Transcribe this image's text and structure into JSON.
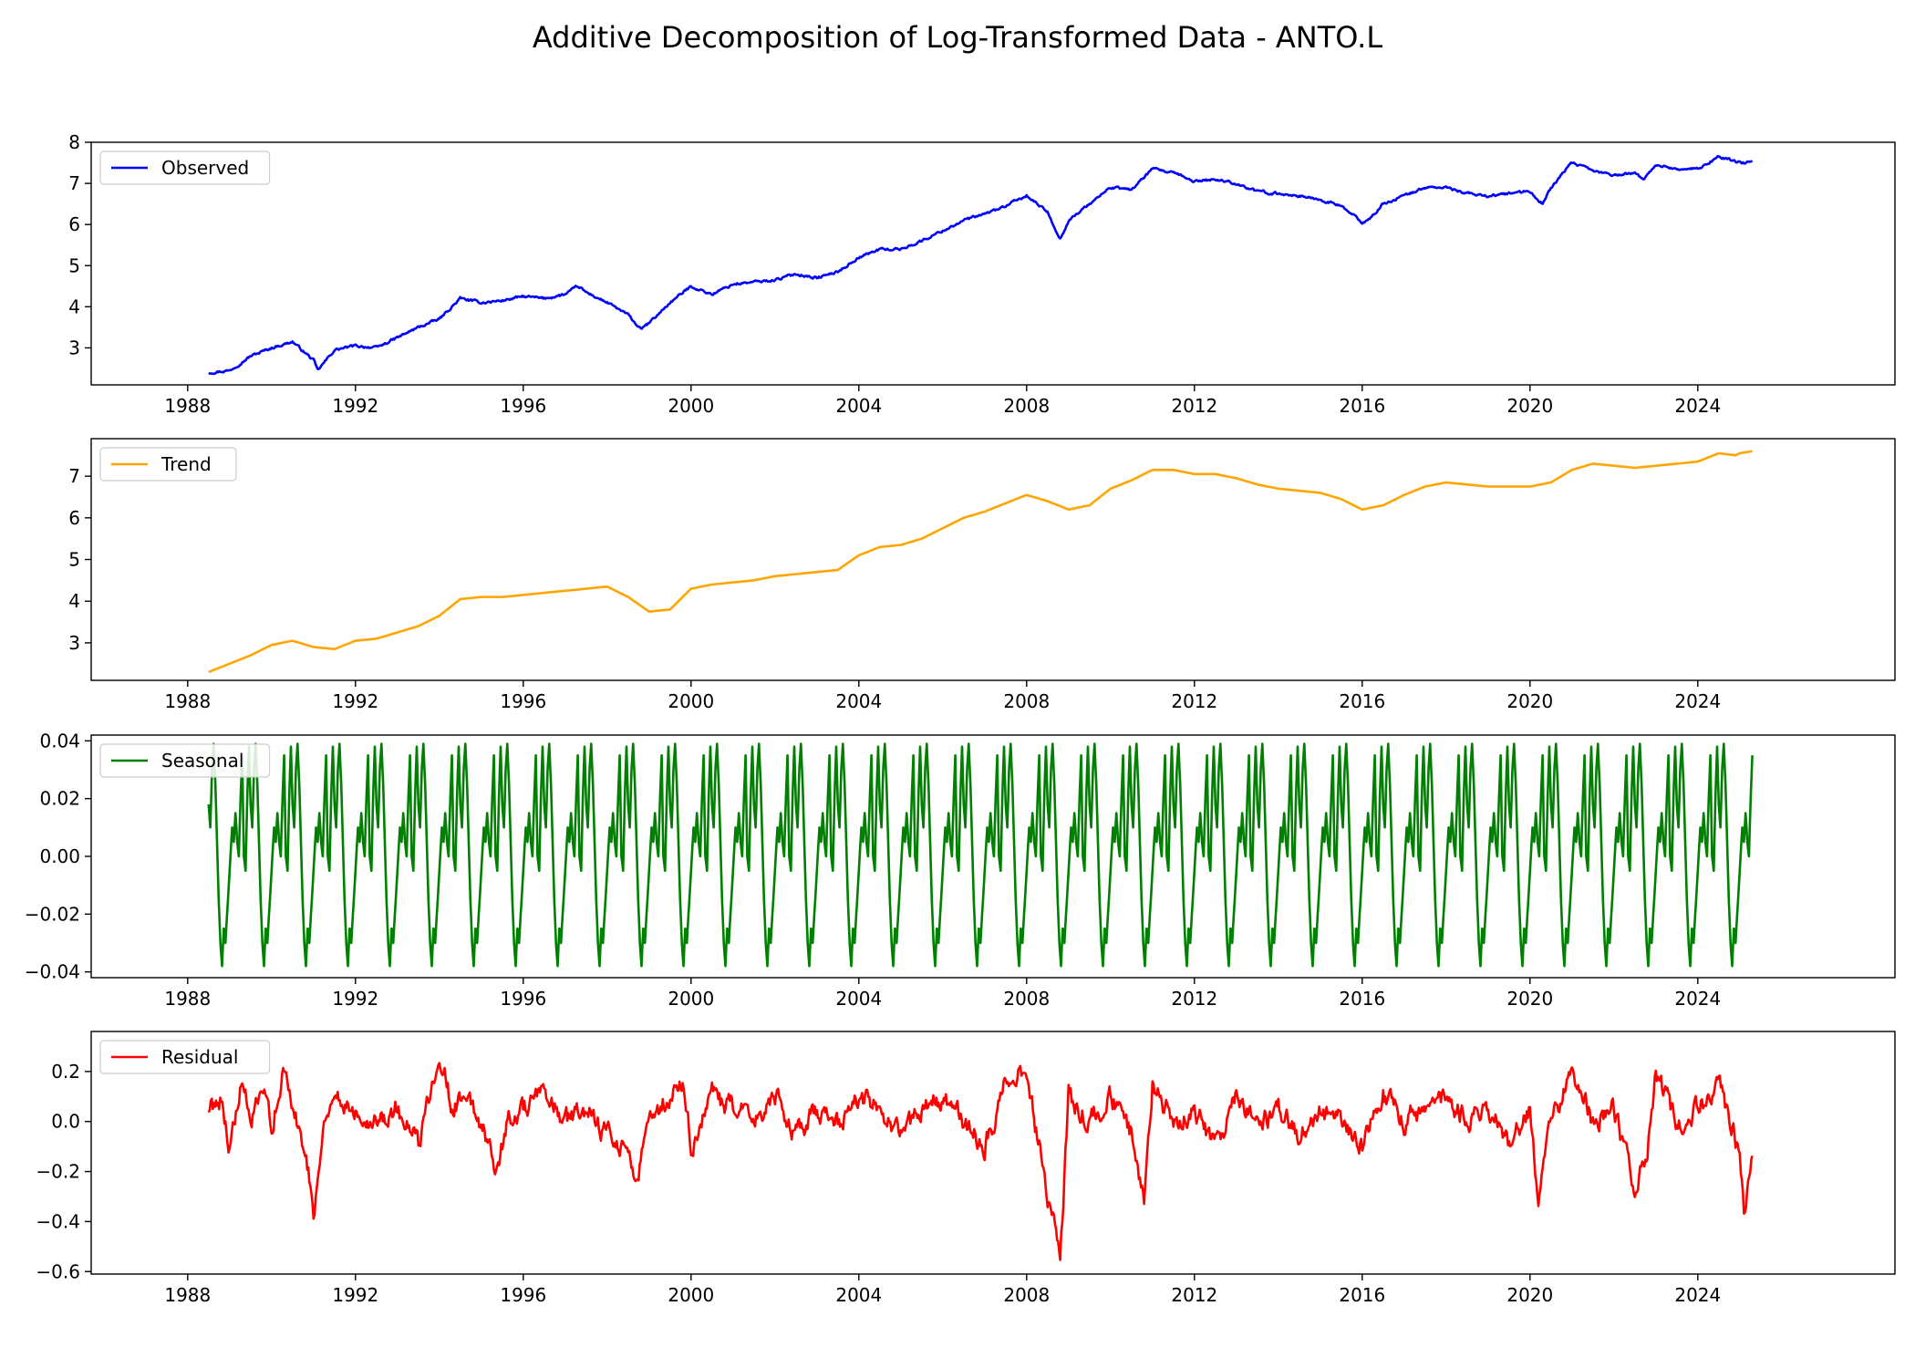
{
  "title": "Additive Decomposition of Log-Transformed Data - ANTO.L",
  "chart_data": [
    {
      "type": "line",
      "legend": "Observed",
      "legend_position": "upper-left",
      "color": "#0000ff",
      "x_range": [
        1985.7,
        2028.7
      ],
      "x_ticks": [
        1988,
        1992,
        1996,
        2000,
        2004,
        2008,
        2012,
        2016,
        2020,
        2024
      ],
      "ylim": [
        2.1,
        8.0
      ],
      "y_ticks": [
        3,
        4,
        5,
        6,
        7,
        8
      ],
      "y_tick_labels": [
        "3",
        "4",
        "5",
        "6",
        "7",
        "8"
      ],
      "noise": 0.05,
      "series": [
        {
          "name": "Observed",
          "x": [
            1988.5,
            1989.0,
            1989.5,
            1990.0,
            1990.5,
            1991.0,
            1991.1,
            1991.5,
            1992.0,
            1992.5,
            1993.0,
            1993.5,
            1994.0,
            1994.5,
            1995.0,
            1995.5,
            1996.0,
            1996.5,
            1997.0,
            1997.3,
            1997.5,
            1998.0,
            1998.5,
            1998.8,
            1999.0,
            1999.5,
            2000.0,
            2000.5,
            2001.0,
            2001.5,
            2002.0,
            2002.5,
            2003.0,
            2003.5,
            2004.0,
            2004.5,
            2005.0,
            2005.5,
            2006.0,
            2006.5,
            2007.0,
            2007.5,
            2008.0,
            2008.5,
            2008.8,
            2009.0,
            2009.5,
            2010.0,
            2010.5,
            2011.0,
            2011.5,
            2012.0,
            2012.5,
            2013.0,
            2013.5,
            2014.0,
            2014.5,
            2015.0,
            2015.5,
            2016.0,
            2016.2,
            2016.5,
            2017.0,
            2017.5,
            2018.0,
            2018.5,
            2019.0,
            2019.5,
            2020.0,
            2020.3,
            2020.5,
            2021.0,
            2021.5,
            2022.0,
            2022.5,
            2022.7,
            2023.0,
            2023.5,
            2024.0,
            2024.5,
            2025.0,
            2025.3
          ],
          "values": [
            2.4,
            2.45,
            2.8,
            3.0,
            3.15,
            2.7,
            2.45,
            2.95,
            3.05,
            3.0,
            3.25,
            3.5,
            3.7,
            4.2,
            4.1,
            4.15,
            4.25,
            4.2,
            4.3,
            4.5,
            4.35,
            4.1,
            3.8,
            3.45,
            3.6,
            4.1,
            4.5,
            4.3,
            4.55,
            4.6,
            4.65,
            4.8,
            4.7,
            4.85,
            5.2,
            5.4,
            5.4,
            5.6,
            5.85,
            6.1,
            6.25,
            6.45,
            6.7,
            6.3,
            5.65,
            6.1,
            6.5,
            6.9,
            6.85,
            7.35,
            7.25,
            7.05,
            7.1,
            7.0,
            6.8,
            6.75,
            6.7,
            6.6,
            6.45,
            6.05,
            6.15,
            6.5,
            6.7,
            6.9,
            6.9,
            6.75,
            6.7,
            6.75,
            6.8,
            6.5,
            6.9,
            7.5,
            7.3,
            7.2,
            7.25,
            7.1,
            7.45,
            7.35,
            7.35,
            7.65,
            7.5,
            7.5
          ]
        }
      ]
    },
    {
      "type": "line",
      "legend": "Trend",
      "legend_position": "upper-left",
      "color": "#ffa500",
      "x_range": [
        1985.7,
        2028.7
      ],
      "x_ticks": [
        1988,
        1992,
        1996,
        2000,
        2004,
        2008,
        2012,
        2016,
        2020,
        2024
      ],
      "ylim": [
        2.1,
        7.9
      ],
      "y_ticks": [
        3,
        4,
        5,
        6,
        7
      ],
      "y_tick_labels": [
        "3",
        "4",
        "5",
        "6",
        "7"
      ],
      "noise": 0.0,
      "series": [
        {
          "name": "Trend",
          "x": [
            1988.5,
            1989.0,
            1989.5,
            1990.0,
            1990.5,
            1991.0,
            1991.5,
            1992.0,
            1992.5,
            1993.0,
            1993.5,
            1994.0,
            1994.5,
            1995.0,
            1995.5,
            1996.0,
            1996.5,
            1997.0,
            1997.5,
            1998.0,
            1998.5,
            1999.0,
            1999.5,
            2000.0,
            2000.5,
            2001.0,
            2001.5,
            2002.0,
            2002.5,
            2003.0,
            2003.5,
            2004.0,
            2004.5,
            2005.0,
            2005.5,
            2006.0,
            2006.5,
            2007.0,
            2007.5,
            2008.0,
            2008.5,
            2009.0,
            2009.5,
            2010.0,
            2010.5,
            2011.0,
            2011.5,
            2012.0,
            2012.5,
            2013.0,
            2013.5,
            2014.0,
            2014.5,
            2015.0,
            2015.5,
            2016.0,
            2016.5,
            2017.0,
            2017.5,
            2018.0,
            2018.5,
            2019.0,
            2019.5,
            2020.0,
            2020.5,
            2021.0,
            2021.5,
            2022.0,
            2022.5,
            2023.0,
            2023.5,
            2024.0,
            2024.5,
            2024.9,
            2025.0,
            2025.3
          ],
          "values": [
            2.3,
            2.5,
            2.7,
            2.95,
            3.05,
            2.9,
            2.85,
            3.05,
            3.1,
            3.25,
            3.4,
            3.65,
            4.05,
            4.1,
            4.1,
            4.15,
            4.2,
            4.25,
            4.3,
            4.35,
            4.1,
            3.75,
            3.8,
            4.3,
            4.4,
            4.45,
            4.5,
            4.6,
            4.65,
            4.7,
            4.75,
            5.1,
            5.3,
            5.35,
            5.5,
            5.75,
            6.0,
            6.15,
            6.35,
            6.55,
            6.4,
            6.2,
            6.3,
            6.7,
            6.9,
            7.15,
            7.15,
            7.05,
            7.05,
            6.95,
            6.8,
            6.7,
            6.65,
            6.6,
            6.45,
            6.2,
            6.3,
            6.55,
            6.75,
            6.85,
            6.8,
            6.75,
            6.75,
            6.75,
            6.85,
            7.15,
            7.3,
            7.25,
            7.2,
            7.25,
            7.3,
            7.35,
            7.55,
            7.5,
            7.55,
            7.6
          ]
        }
      ]
    },
    {
      "type": "line",
      "legend": "Seasonal",
      "legend_position": "upper-left",
      "color": "#008000",
      "x_range": [
        1985.7,
        2028.7
      ],
      "x_ticks": [
        1988,
        1992,
        1996,
        2000,
        2004,
        2008,
        2012,
        2016,
        2020,
        2024
      ],
      "ylim": [
        -0.042,
        0.042
      ],
      "y_ticks": [
        -0.04,
        -0.02,
        0.0,
        0.02,
        0.04
      ],
      "y_tick_labels": [
        "−0.04",
        "−0.02",
        "0.00",
        "0.02",
        "0.04"
      ],
      "periodic": true,
      "period_years": 1.0,
      "x_start": 1988.5,
      "x_end": 2025.3,
      "cycle_values": [
        0.018,
        0.01,
        0.03,
        0.039,
        0.025,
        0.005,
        -0.015,
        -0.03,
        -0.038,
        -0.025,
        -0.03,
        -0.02,
        -0.01,
        0.0,
        0.01,
        0.005,
        0.015,
        0.005,
        0.0,
        0.02,
        0.035,
        0.0,
        -0.005,
        0.02,
        0.038
      ]
    },
    {
      "type": "line",
      "legend": "Residual",
      "legend_position": "upper-left",
      "color": "#ff0000",
      "x_range": [
        1985.7,
        2028.7
      ],
      "x_ticks": [
        1988,
        1992,
        1996,
        2000,
        2004,
        2008,
        2012,
        2016,
        2020,
        2024
      ],
      "ylim": [
        -0.61,
        0.36
      ],
      "y_ticks": [
        -0.6,
        -0.4,
        -0.2,
        0.0,
        0.2
      ],
      "y_tick_labels": [
        "−0.6",
        "−0.4",
        "−0.2",
        "0.0",
        "0.2"
      ],
      "noise": 0.07,
      "series": [
        {
          "name": "Residual",
          "x": [
            1988.5,
            1988.8,
            1989.0,
            1989.3,
            1989.5,
            1989.8,
            1990.0,
            1990.3,
            1990.5,
            1990.8,
            1991.0,
            1991.3,
            1991.5,
            1992.0,
            1992.5,
            1993.0,
            1993.5,
            1994.0,
            1994.3,
            1994.6,
            1995.0,
            1995.4,
            1995.6,
            1996.0,
            1996.5,
            1997.0,
            1997.5,
            1998.0,
            1998.5,
            1998.7,
            1999.0,
            1999.5,
            1999.8,
            2000.0,
            2000.5,
            2001.0,
            2001.5,
            2002.0,
            2002.5,
            2003.0,
            2003.5,
            2004.0,
            2004.5,
            2005.0,
            2005.5,
            2006.0,
            2006.5,
            2007.0,
            2007.5,
            2008.0,
            2008.4,
            2008.8,
            2009.0,
            2009.5,
            2010.0,
            2010.5,
            2010.8,
            2011.0,
            2011.5,
            2012.0,
            2012.5,
            2013.0,
            2013.5,
            2014.0,
            2014.5,
            2015.0,
            2015.5,
            2016.0,
            2016.5,
            2017.0,
            2017.5,
            2018.0,
            2018.5,
            2019.0,
            2019.5,
            2020.0,
            2020.2,
            2020.5,
            2021.0,
            2021.5,
            2022.0,
            2022.5,
            2022.8,
            2023.0,
            2023.5,
            2024.0,
            2024.5,
            2024.8,
            2025.0,
            2025.1,
            2025.3
          ],
          "values": [
            0.05,
            0.1,
            -0.1,
            0.15,
            0.0,
            0.1,
            0.0,
            0.2,
            0.05,
            -0.1,
            -0.35,
            0.05,
            0.1,
            0.05,
            0.0,
            0.05,
            -0.1,
            0.3,
            0.05,
            0.1,
            0.0,
            -0.2,
            0.0,
            0.05,
            0.1,
            0.0,
            0.05,
            -0.05,
            -0.1,
            -0.25,
            0.0,
            0.1,
            0.15,
            -0.1,
            0.1,
            0.05,
            0.0,
            0.1,
            -0.05,
            0.05,
            0.0,
            0.1,
            0.05,
            -0.05,
            0.05,
            0.1,
            0.0,
            -0.1,
            0.15,
            0.2,
            -0.2,
            -0.55,
            0.1,
            0.0,
            0.1,
            -0.05,
            -0.3,
            0.15,
            0.0,
            0.05,
            -0.1,
            0.1,
            0.0,
            0.05,
            -0.05,
            0.05,
            0.0,
            -0.1,
            0.1,
            0.0,
            0.05,
            0.1,
            0.0,
            0.05,
            -0.1,
            0.05,
            -0.35,
            0.0,
            0.2,
            0.0,
            0.05,
            -0.25,
            -0.1,
            0.2,
            0.0,
            0.05,
            0.15,
            0.0,
            -0.15,
            -0.35,
            -0.15
          ]
        }
      ]
    }
  ]
}
